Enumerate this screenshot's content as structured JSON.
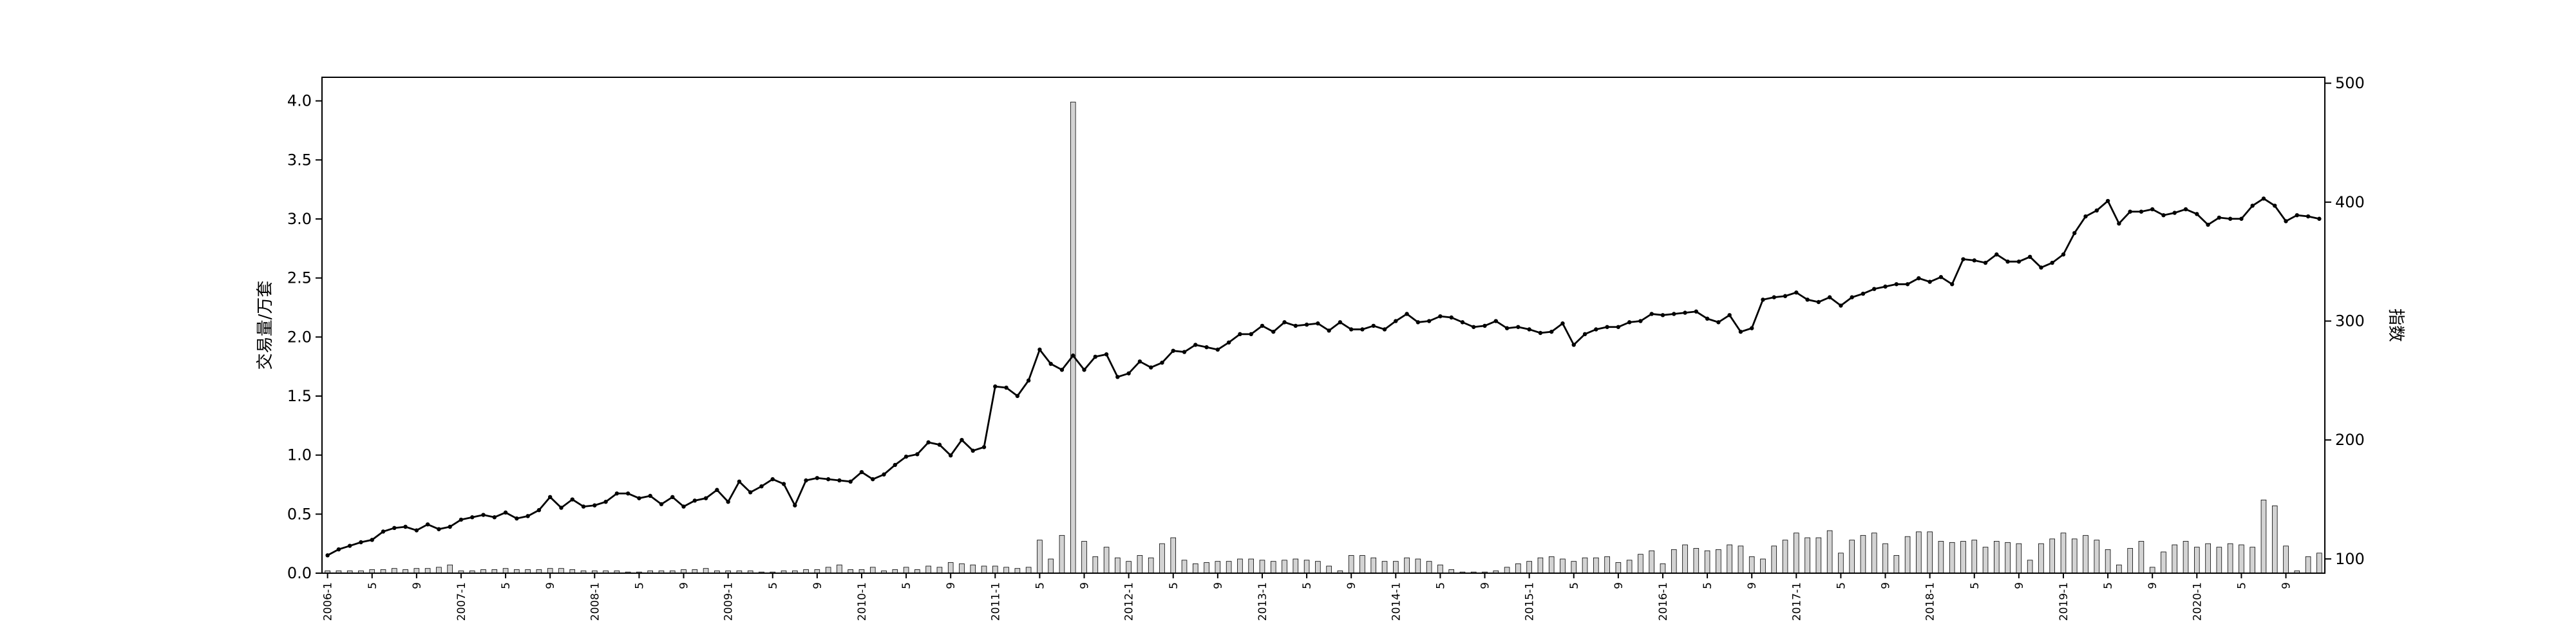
{
  "chart_data": {
    "type": "bar+line",
    "title": "",
    "y_left_label": "交易量/万套",
    "y_right_label": "指数",
    "y_left_lim": [
      0,
      4.2
    ],
    "y_right_lim": [
      88,
      505
    ],
    "y_left_ticks": [
      "0.0",
      "0.5",
      "1.0",
      "1.5",
      "2.0",
      "2.5",
      "3.0",
      "3.5",
      "4.0"
    ],
    "y_right_ticks": [
      "100",
      "200",
      "300",
      "400",
      "500"
    ],
    "x_start": "2006-01",
    "x_count": 180,
    "grid": false,
    "legend": "none",
    "x_tick_labels": [
      "2006-1",
      "5",
      "9",
      "2007-1",
      "5",
      "9",
      "2008-1",
      "5",
      "9",
      "2009-1",
      "5",
      "9",
      "2010-1",
      "5",
      "9",
      "2011-1",
      "5",
      "9",
      "2012-1",
      "5",
      "9",
      "2013-1",
      "5",
      "9",
      "2014-1",
      "5",
      "9",
      "2015-1",
      "5",
      "9",
      "2016-1",
      "5",
      "9",
      "2017-1",
      "5",
      "9",
      "2018-1",
      "5",
      "9",
      "2019-1",
      "5",
      "9",
      "2020-1",
      "5",
      "9"
    ],
    "series": [
      {
        "type": "bar",
        "axis": "left",
        "color": "#d3d3d3",
        "values": [
          0.02,
          0.02,
          0.02,
          0.02,
          0.03,
          0.03,
          0.04,
          0.03,
          0.04,
          0.04,
          0.05,
          0.07,
          0.02,
          0.02,
          0.03,
          0.03,
          0.04,
          0.03,
          0.03,
          0.03,
          0.04,
          0.04,
          0.03,
          0.02,
          0.02,
          0.02,
          0.02,
          0.01,
          0.01,
          0.02,
          0.02,
          0.02,
          0.03,
          0.03,
          0.04,
          0.02,
          0.02,
          0.02,
          0.02,
          0.01,
          0.01,
          0.02,
          0.02,
          0.03,
          0.03,
          0.05,
          0.07,
          0.03,
          0.03,
          0.05,
          0.02,
          0.03,
          0.05,
          0.03,
          0.06,
          0.05,
          0.09,
          0.08,
          0.07,
          0.06,
          0.06,
          0.05,
          0.04,
          0.05,
          0.28,
          0.12,
          0.32,
          3.99,
          0.27,
          0.14,
          0.22,
          0.13,
          0.1,
          0.15,
          0.13,
          0.25,
          0.3,
          0.11,
          0.08,
          0.09,
          0.1,
          0.1,
          0.12,
          0.12,
          0.11,
          0.1,
          0.11,
          0.12,
          0.11,
          0.1,
          0.06,
          0.02,
          0.15,
          0.15,
          0.13,
          0.1,
          0.1,
          0.13,
          0.12,
          0.1,
          0.07,
          0.03,
          0.01,
          0.01,
          0.01,
          0.02,
          0.05,
          0.08,
          0.1,
          0.13,
          0.14,
          0.12,
          0.1,
          0.13,
          0.13,
          0.14,
          0.09,
          0.11,
          0.16,
          0.19,
          0.08,
          0.2,
          0.24,
          0.21,
          0.19,
          0.2,
          0.24,
          0.23,
          0.14,
          0.12,
          0.23,
          0.28,
          0.34,
          0.3,
          0.3,
          0.36,
          0.17,
          0.28,
          0.32,
          0.34,
          0.25,
          0.15,
          0.31,
          0.35,
          0.35,
          0.27,
          0.26,
          0.27,
          0.28,
          0.22,
          0.27,
          0.26,
          0.25,
          0.11,
          0.25,
          0.29,
          0.34,
          0.29,
          0.32,
          0.28,
          0.2,
          0.07,
          0.21,
          0.27,
          0.05,
          0.18,
          0.24,
          0.27,
          0.22,
          0.25,
          0.22,
          0.25,
          0.24,
          0.22,
          0.62,
          0.57,
          0.23,
          0.02,
          0.14,
          0.17
        ]
      },
      {
        "type": "line",
        "axis": "right",
        "color": "#000000",
        "values": [
          103,
          108,
          111,
          114,
          116,
          123,
          126,
          127,
          124,
          129,
          125,
          127,
          133,
          135,
          137,
          135,
          139,
          134,
          136,
          141,
          152,
          143,
          150,
          144,
          145,
          148,
          155,
          155,
          151,
          153,
          146,
          152,
          144,
          149,
          151,
          158,
          148,
          165,
          156,
          161,
          167,
          163,
          145,
          166,
          168,
          167,
          166,
          165,
          173,
          167,
          171,
          179,
          186,
          188,
          198,
          196,
          187,
          200,
          191,
          194,
          245,
          244,
          237,
          250,
          276,
          264,
          259,
          271,
          259,
          270,
          272,
          253,
          256,
          266,
          261,
          265,
          275,
          274,
          280,
          278,
          276,
          282,
          289,
          289,
          296,
          291,
          299,
          296,
          297,
          298,
          292,
          299,
          293,
          293,
          296,
          293,
          300,
          306,
          299,
          300,
          304,
          303,
          299,
          295,
          296,
          300,
          294,
          295,
          293,
          290,
          291,
          298,
          280,
          289,
          293,
          295,
          295,
          299,
          300,
          306,
          305,
          306,
          307,
          308,
          302,
          299,
          305,
          291,
          294,
          318,
          320,
          321,
          324,
          318,
          316,
          320,
          313,
          320,
          323,
          327,
          329,
          331,
          331,
          336,
          333,
          337,
          331,
          352,
          351,
          349,
          356,
          350,
          350,
          354,
          345,
          349,
          356,
          374,
          388,
          393,
          401,
          382,
          392,
          392,
          394,
          389,
          391,
          394,
          390,
          381,
          387,
          386,
          386,
          397,
          403,
          397,
          384,
          389,
          388,
          386
        ]
      }
    ]
  }
}
